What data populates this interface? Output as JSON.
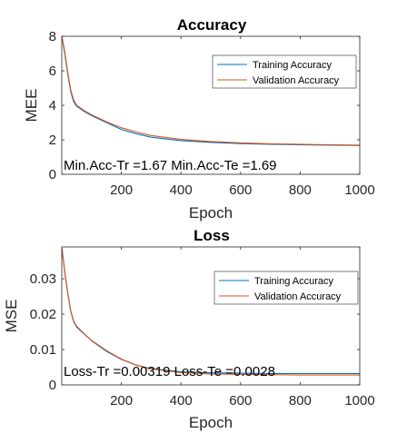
{
  "chart_data": [
    {
      "type": "line",
      "title": "Accuracy",
      "xlabel": "Epoch",
      "ylabel": "MEE",
      "xlim": [
        0,
        1000
      ],
      "ylim": [
        0,
        8
      ],
      "xticks": [
        200,
        400,
        600,
        800,
        1000
      ],
      "yticks": [
        0,
        2,
        4,
        6,
        8
      ],
      "legend_position": "top-right",
      "series": [
        {
          "name": "Training Accuracy",
          "color": "#0072BD",
          "x": [
            1,
            10,
            20,
            30,
            40,
            50,
            75,
            100,
            150,
            200,
            250,
            300,
            400,
            500,
            600,
            700,
            800,
            900,
            1000
          ],
          "y": [
            7.9,
            7.0,
            5.8,
            4.8,
            4.2,
            3.95,
            3.65,
            3.4,
            3.0,
            2.6,
            2.35,
            2.15,
            1.95,
            1.85,
            1.78,
            1.74,
            1.71,
            1.69,
            1.67
          ]
        },
        {
          "name": "Validation  Accuracy",
          "color": "#D95319",
          "x": [
            1,
            10,
            20,
            30,
            40,
            50,
            75,
            100,
            150,
            200,
            250,
            300,
            400,
            500,
            600,
            700,
            800,
            900,
            1000
          ],
          "y": [
            7.95,
            7.1,
            5.9,
            4.9,
            4.3,
            4.0,
            3.7,
            3.45,
            3.05,
            2.7,
            2.45,
            2.25,
            2.02,
            1.9,
            1.82,
            1.77,
            1.74,
            1.71,
            1.69
          ]
        }
      ],
      "annotation": "Min.Acc-Tr =1.67 Min.Acc-Te =1.69"
    },
    {
      "type": "line",
      "title": "Loss",
      "xlabel": "Epoch",
      "ylabel": "MSE",
      "xlim": [
        0,
        1000
      ],
      "ylim": [
        0,
        0.039
      ],
      "xticks": [
        200,
        400,
        600,
        800,
        1000
      ],
      "yticks": [
        0,
        0.01,
        0.02,
        0.03
      ],
      "ytick_labels": [
        "0",
        "0.01",
        "0.02",
        "0.03"
      ],
      "legend_position": "top-right",
      "series": [
        {
          "name": "Training Accuracy",
          "color": "#0072BD",
          "x": [
            1,
            10,
            20,
            30,
            40,
            50,
            75,
            100,
            150,
            200,
            250,
            300,
            400,
            500,
            600,
            700,
            800,
            900,
            1000
          ],
          "y": [
            0.0385,
            0.032,
            0.026,
            0.021,
            0.018,
            0.0165,
            0.0145,
            0.0125,
            0.0095,
            0.0072,
            0.0056,
            0.0046,
            0.0037,
            0.0034,
            0.0033,
            0.0032,
            0.0032,
            0.0032,
            0.0032
          ]
        },
        {
          "name": "Validation  Accuracy",
          "color": "#D95319",
          "x": [
            1,
            10,
            20,
            30,
            40,
            50,
            75,
            100,
            150,
            200,
            250,
            300,
            400,
            500,
            600,
            700,
            800,
            900,
            1000
          ],
          "y": [
            0.0383,
            0.0318,
            0.0258,
            0.0208,
            0.0178,
            0.0163,
            0.0144,
            0.0126,
            0.0097,
            0.0073,
            0.0056,
            0.0045,
            0.0035,
            0.0031,
            0.003,
            0.0029,
            0.0028,
            0.0028,
            0.0028
          ]
        }
      ],
      "annotation": "Loss-Tr =0.00319 Loss-Te =0.0028"
    }
  ]
}
